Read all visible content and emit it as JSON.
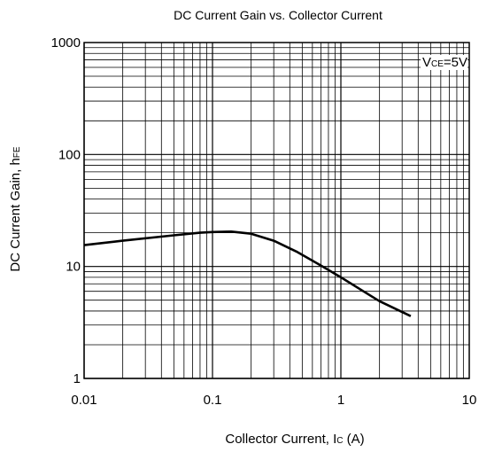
{
  "chart_data": {
    "type": "line",
    "title": "DC Current Gain vs. Collector Current",
    "xlabel_main": "Collector Current, I",
    "xlabel_sub": "C",
    "xlabel_unit": " (A)",
    "ylabel_main": "DC Current Gain, h",
    "ylabel_sub": "FE",
    "annotation_main": "V",
    "annotation_sub": "CE",
    "annotation_value": "=5V",
    "x_scale": "log",
    "y_scale": "log",
    "xlim": [
      0.01,
      10
    ],
    "ylim": [
      1,
      1000
    ],
    "grid": true,
    "x_ticks": [
      "0.01",
      "0.1",
      "1",
      "10"
    ],
    "y_ticks": [
      "1",
      "10",
      "100",
      "1000"
    ],
    "series": [
      {
        "x": [
          0.01,
          0.02,
          0.05,
          0.08,
          0.1,
          0.14,
          0.2,
          0.3,
          0.45,
          0.7,
          1.0,
          1.5,
          2.0,
          3.5
        ],
        "y": [
          15.5,
          17.0,
          19.0,
          20.0,
          20.3,
          20.5,
          19.6,
          17.0,
          13.6,
          10.2,
          8.0,
          6.0,
          4.9,
          3.6
        ]
      }
    ]
  },
  "colors": {
    "line": "#000000",
    "grid": "#000000",
    "background": "#ffffff"
  }
}
